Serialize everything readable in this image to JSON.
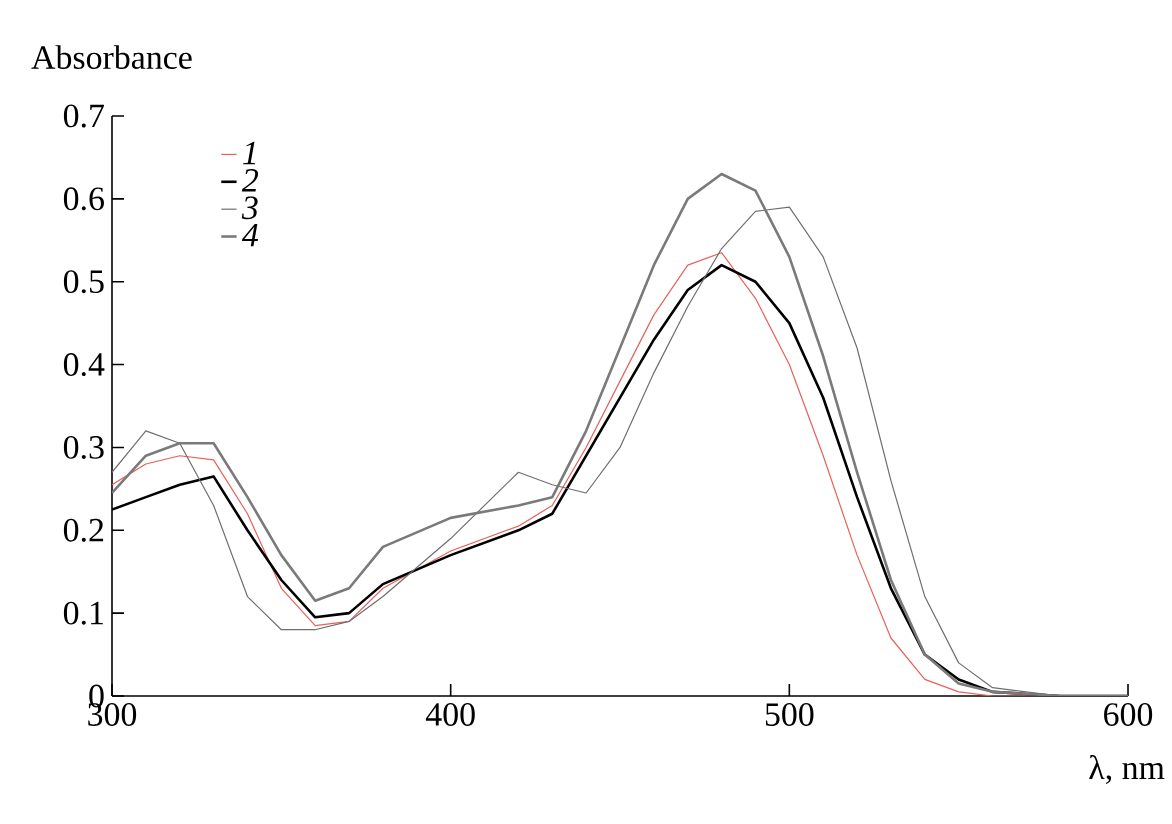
{
  "chart_data": {
    "type": "line",
    "ylabel": "Absorbance",
    "xlabel": "λ, nm",
    "xlim": [
      300,
      600
    ],
    "xticks": [
      300,
      400,
      500,
      600
    ],
    "ylim": [
      0,
      0.7
    ],
    "yticks": [
      0,
      0.1,
      0.2,
      0.3,
      0.4,
      0.5,
      0.6,
      0.7
    ],
    "legend": "top left",
    "line_style": "solid",
    "x": [
      300,
      310,
      320,
      330,
      340,
      350,
      360,
      370,
      380,
      400,
      420,
      430,
      440,
      450,
      460,
      470,
      480,
      490,
      500,
      510,
      520,
      530,
      540,
      550,
      560,
      580,
      600
    ],
    "series": [
      {
        "name": "1",
        "color": "#e8605a",
        "values": [
          0.255,
          0.28,
          0.29,
          0.285,
          0.22,
          0.13,
          0.085,
          0.09,
          0.13,
          0.175,
          0.205,
          0.23,
          0.3,
          0.38,
          0.46,
          0.52,
          0.535,
          0.48,
          0.4,
          0.29,
          0.17,
          0.07,
          0.02,
          0.005,
          0,
          0,
          0
        ]
      },
      {
        "name": "2",
        "color": "#000000",
        "values": [
          0.225,
          0.24,
          0.255,
          0.265,
          0.2,
          0.14,
          0.095,
          0.1,
          0.135,
          0.17,
          0.2,
          0.22,
          0.29,
          0.36,
          0.43,
          0.49,
          0.52,
          0.5,
          0.45,
          0.36,
          0.24,
          0.13,
          0.05,
          0.02,
          0.005,
          0,
          0
        ]
      },
      {
        "name": "3",
        "color": "#6e6e6e",
        "values": [
          0.27,
          0.32,
          0.305,
          0.23,
          0.12,
          0.08,
          0.08,
          0.09,
          0.12,
          0.19,
          0.27,
          0.255,
          0.245,
          0.3,
          0.39,
          0.47,
          0.54,
          0.585,
          0.59,
          0.53,
          0.42,
          0.26,
          0.12,
          0.04,
          0.01,
          0,
          0
        ]
      },
      {
        "name": "4",
        "color": "#7a7a7a",
        "values": [
          0.245,
          0.29,
          0.305,
          0.305,
          0.24,
          0.17,
          0.115,
          0.13,
          0.18,
          0.215,
          0.23,
          0.24,
          0.32,
          0.42,
          0.52,
          0.6,
          0.63,
          0.61,
          0.53,
          0.41,
          0.27,
          0.14,
          0.05,
          0.015,
          0.005,
          0,
          0
        ]
      }
    ]
  }
}
